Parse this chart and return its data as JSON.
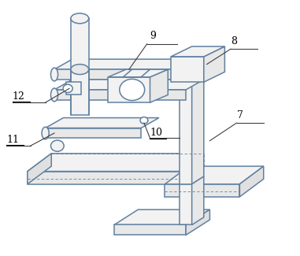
{
  "background_color": "#ffffff",
  "line_color": "#6080a0",
  "line_width": 1.1,
  "label_fontsize": 9,
  "label_color": "#000000"
}
